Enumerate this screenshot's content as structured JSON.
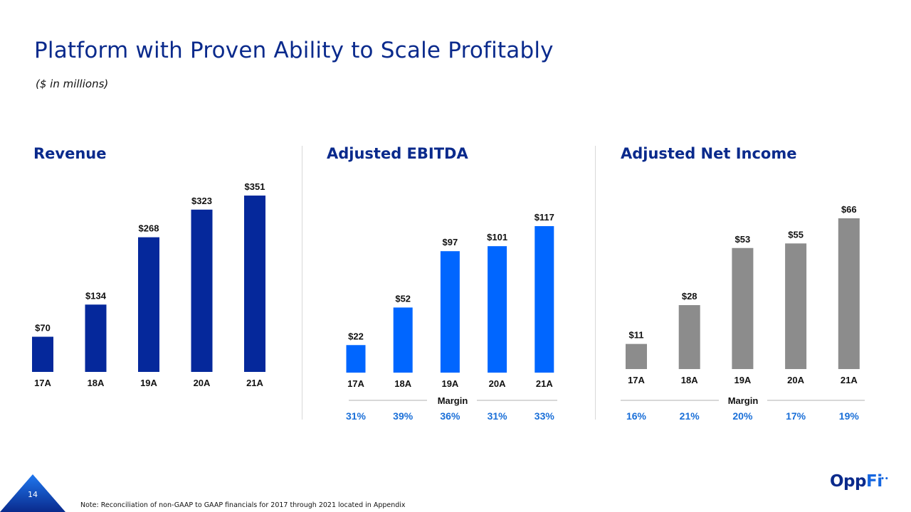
{
  "header": {
    "title": "Platform with Proven Ability to Scale Profitably",
    "subtitle": "($ in millions)"
  },
  "colors": {
    "title_navy": "#0a2a8c",
    "revenue_bar": "#05289b",
    "ebitda_bar": "#0066ff",
    "net_income_bar": "#8c8c8c",
    "margin_text": "#1a6fd8",
    "margin_rule": "#b0b0b0"
  },
  "chart_data": [
    {
      "type": "bar",
      "title": "Revenue",
      "categories": [
        "17A",
        "18A",
        "19A",
        "20A",
        "21A"
      ],
      "values": [
        70,
        134,
        268,
        323,
        351
      ],
      "labels": [
        "$70",
        "$134",
        "$268",
        "$323",
        "$351"
      ],
      "xlabel": "",
      "ylabel": "",
      "ylim": [
        0,
        351
      ],
      "grid": false
    },
    {
      "type": "bar",
      "title": "Adjusted EBITDA",
      "categories": [
        "17A",
        "18A",
        "19A",
        "20A",
        "21A"
      ],
      "values": [
        22,
        52,
        97,
        101,
        117
      ],
      "labels": [
        "$22",
        "$52",
        "$97",
        "$101",
        "$117"
      ],
      "margin_label": "Margin",
      "margins": [
        "31%",
        "39%",
        "36%",
        "31%",
        "33%"
      ],
      "xlabel": "",
      "ylabel": "",
      "ylim": [
        0,
        117
      ],
      "grid": false
    },
    {
      "type": "bar",
      "title": "Adjusted Net Income",
      "categories": [
        "17A",
        "18A",
        "19A",
        "20A",
        "21A"
      ],
      "values": [
        11,
        28,
        53,
        55,
        66
      ],
      "labels": [
        "$11",
        "$28",
        "$53",
        "$55",
        "$66"
      ],
      "margin_label": "Margin",
      "margins": [
        "16%",
        "21%",
        "20%",
        "17%",
        "19%"
      ],
      "xlabel": "",
      "ylabel": "",
      "ylim": [
        0,
        66
      ],
      "grid": false
    }
  ],
  "footer": {
    "page_number": "14",
    "note": "Note: Reconciliation of non-GAAP to GAAP financials for 2017 through 2021 located in Appendix",
    "logo_part1": "Opp",
    "logo_part2": "Fi",
    "logo_dots": "••"
  }
}
